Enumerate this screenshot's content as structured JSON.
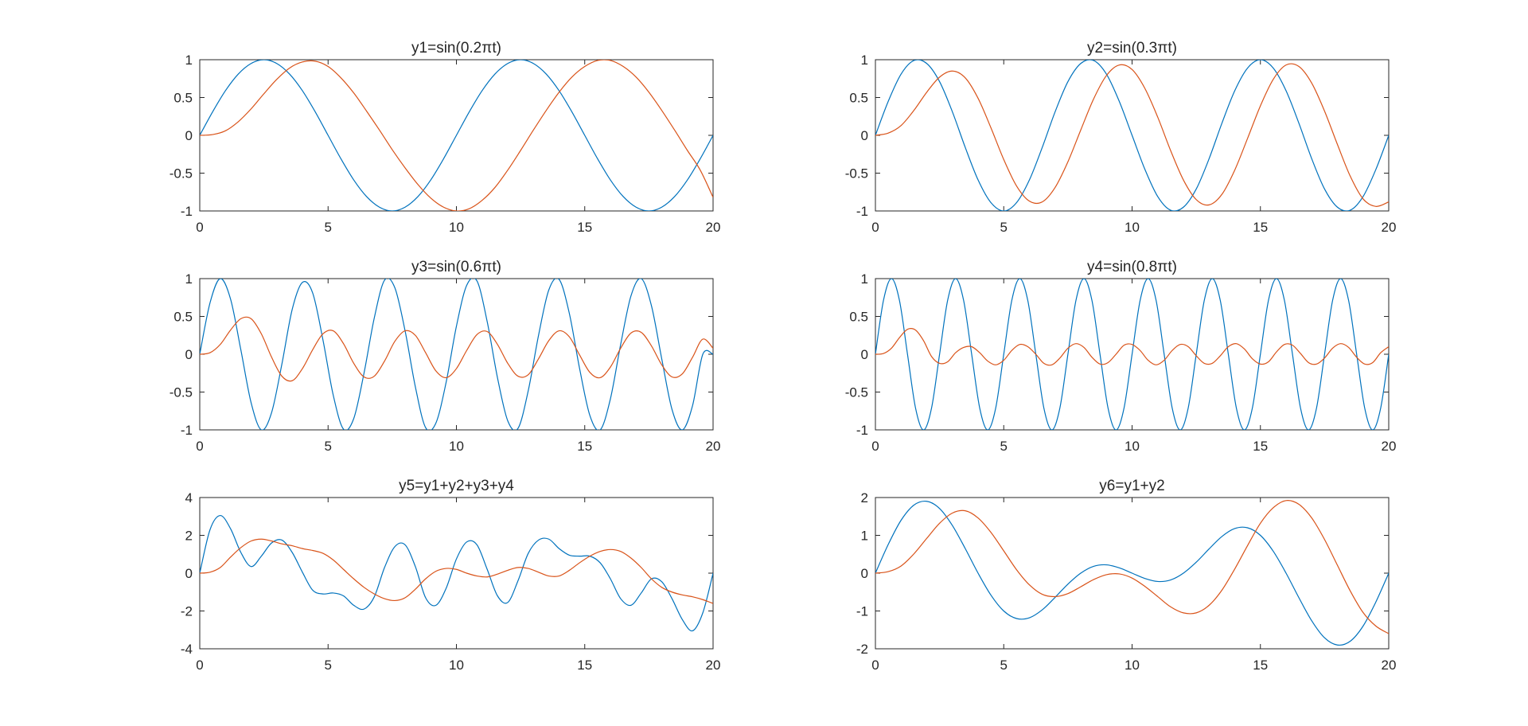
{
  "figure": {
    "colors": {
      "series1": "#0072BD",
      "series2": "#D95319",
      "axis": "#262626",
      "background": "#ffffff"
    }
  },
  "chart_data": [
    {
      "type": "line",
      "title": "y1=sin(0.2πt)",
      "xlim": [
        0,
        20
      ],
      "ylim": [
        -1,
        1
      ],
      "x_ticks": [
        0,
        5,
        10,
        15,
        20
      ],
      "x_tick_labels": [
        "0",
        "5",
        "10",
        "15",
        "20"
      ],
      "y_ticks": [
        -1,
        -0.5,
        0,
        0.5,
        1
      ],
      "y_tick_labels": [
        "-1",
        "-0.5",
        "0",
        "0.5",
        "1"
      ],
      "grid": false,
      "x": [
        0,
        0.5,
        1,
        1.5,
        2,
        2.5,
        3,
        3.5,
        4,
        4.5,
        5,
        5.5,
        6,
        6.5,
        7,
        7.5,
        8,
        8.5,
        9,
        9.5,
        10,
        10.5,
        11,
        11.5,
        12,
        12.5,
        13,
        13.5,
        14,
        14.5,
        15,
        15.5,
        16,
        16.5,
        17,
        17.5,
        18,
        18.5,
        19,
        19.5,
        20
      ],
      "series": [
        {
          "color": "#0072BD",
          "values": [
            0,
            0.31,
            0.59,
            0.81,
            0.95,
            1,
            0.95,
            0.81,
            0.59,
            0.31,
            0,
            -0.31,
            -0.59,
            -0.81,
            -0.95,
            -1,
            -0.95,
            -0.81,
            -0.59,
            -0.31,
            0,
            0.31,
            0.59,
            0.81,
            0.95,
            1,
            0.95,
            0.81,
            0.59,
            0.31,
            0,
            -0.31,
            -0.59,
            -0.81,
            -0.95,
            -1,
            -0.95,
            -0.81,
            -0.59,
            -0.31,
            0
          ]
        },
        {
          "color": "#D95319",
          "values": [
            0,
            0.01,
            0.06,
            0.18,
            0.35,
            0.55,
            0.74,
            0.89,
            0.97,
            0.98,
            0.91,
            0.76,
            0.56,
            0.32,
            0.07,
            -0.19,
            -0.43,
            -0.65,
            -0.83,
            -0.95,
            -1,
            -0.97,
            -0.86,
            -0.69,
            -0.46,
            -0.2,
            0.07,
            0.33,
            0.57,
            0.77,
            0.91,
            0.99,
            0.99,
            0.91,
            0.77,
            0.57,
            0.33,
            0.07,
            -0.2,
            -0.46,
            -0.82
          ]
        }
      ]
    },
    {
      "type": "line",
      "title": "y2=sin(0.3πt)",
      "xlim": [
        0,
        20
      ],
      "ylim": [
        -1,
        1
      ],
      "x_ticks": [
        0,
        5,
        10,
        15,
        20
      ],
      "x_tick_labels": [
        "0",
        "5",
        "10",
        "15",
        "20"
      ],
      "y_ticks": [
        -1,
        -0.5,
        0,
        0.5,
        1
      ],
      "y_tick_labels": [
        "-1",
        "-0.5",
        "0",
        "0.5",
        "1"
      ],
      "grid": false,
      "x": [
        0,
        0.5,
        1,
        1.5,
        2,
        2.5,
        3,
        3.5,
        4,
        4.5,
        5,
        5.5,
        6,
        6.5,
        7,
        7.5,
        8,
        8.5,
        9,
        9.5,
        10,
        10.5,
        11,
        11.5,
        12,
        12.5,
        13,
        13.5,
        14,
        14.5,
        15,
        15.5,
        16,
        16.5,
        17,
        17.5,
        18,
        18.5,
        19,
        19.5,
        20
      ],
      "series": [
        {
          "color": "#0072BD",
          "values": [
            0,
            0.45,
            0.81,
            0.99,
            0.95,
            0.71,
            0.31,
            -0.16,
            -0.59,
            -0.89,
            -1,
            -0.89,
            -0.59,
            -0.16,
            0.31,
            0.71,
            0.95,
            0.99,
            0.81,
            0.45,
            0,
            -0.45,
            -0.81,
            -0.99,
            -0.95,
            -0.71,
            -0.31,
            0.16,
            0.59,
            0.89,
            1,
            0.89,
            0.59,
            0.16,
            -0.31,
            -0.71,
            -0.95,
            -0.99,
            -0.81,
            -0.45,
            0
          ]
        },
        {
          "color": "#D95319",
          "values": [
            0,
            0.03,
            0.13,
            0.33,
            0.57,
            0.77,
            0.85,
            0.76,
            0.49,
            0.1,
            -0.32,
            -0.67,
            -0.87,
            -0.88,
            -0.69,
            -0.35,
            0.07,
            0.48,
            0.79,
            0.93,
            0.87,
            0.62,
            0.24,
            -0.2,
            -0.59,
            -0.85,
            -0.92,
            -0.78,
            -0.46,
            -0.04,
            0.39,
            0.74,
            0.93,
            0.91,
            0.69,
            0.32,
            -0.12,
            -0.54,
            -0.84,
            -0.94,
            -0.88
          ]
        }
      ]
    },
    {
      "type": "line",
      "title": "y3=sin(0.6πt)",
      "xlim": [
        0,
        20
      ],
      "ylim": [
        -1,
        1
      ],
      "x_ticks": [
        0,
        5,
        10,
        15,
        20
      ],
      "x_tick_labels": [
        "0",
        "5",
        "10",
        "15",
        "20"
      ],
      "y_ticks": [
        -1,
        -0.5,
        0,
        0.5,
        1
      ],
      "y_tick_labels": [
        "-1",
        "-0.5",
        "0",
        "0.5",
        "1"
      ],
      "grid": false,
      "x": [
        0,
        0.4,
        0.8,
        1.2,
        1.6,
        2,
        2.4,
        2.8,
        3.2,
        3.6,
        4,
        4.4,
        4.8,
        5.2,
        5.6,
        6,
        6.4,
        6.8,
        7.2,
        7.6,
        8,
        8.4,
        8.8,
        9.2,
        9.6,
        10,
        10.4,
        10.8,
        11.2,
        11.6,
        12,
        12.4,
        12.8,
        13.2,
        13.6,
        14,
        14.4,
        14.8,
        15.2,
        15.6,
        16,
        16.4,
        16.8,
        17.2,
        17.6,
        18,
        18.4,
        18.8,
        19.2,
        19.6,
        20
      ],
      "series": [
        {
          "color": "#0072BD",
          "values": [
            0,
            0.68,
            1,
            0.73,
            0.06,
            -0.64,
            -1,
            -0.77,
            -0.13,
            0.59,
            0.95,
            0.81,
            0.19,
            -0.54,
            -0.99,
            -0.85,
            -0.25,
            0.48,
            0.98,
            0.88,
            0.31,
            -0.43,
            -0.97,
            -0.91,
            -0.37,
            0.37,
            0.91,
            0.97,
            0.43,
            -0.31,
            -0.88,
            -0.98,
            -0.48,
            0.25,
            0.85,
            0.99,
            0.54,
            -0.19,
            -0.81,
            -1,
            -0.59,
            0.13,
            0.77,
            1,
            0.64,
            -0.06,
            -0.73,
            -1,
            -0.68,
            0,
            0
          ]
        },
        {
          "color": "#D95319",
          "values": [
            0,
            0.02,
            0.13,
            0.32,
            0.47,
            0.47,
            0.27,
            -0.04,
            -0.29,
            -0.35,
            -0.19,
            0.06,
            0.27,
            0.31,
            0.14,
            -0.12,
            -0.3,
            -0.29,
            -0.09,
            0.17,
            0.31,
            0.25,
            0.02,
            -0.22,
            -0.31,
            -0.19,
            0.05,
            0.26,
            0.3,
            0.13,
            -0.12,
            -0.29,
            -0.27,
            -0.06,
            0.18,
            0.31,
            0.23,
            -0.01,
            -0.24,
            -0.31,
            -0.17,
            0.08,
            0.28,
            0.29,
            0.11,
            -0.14,
            -0.3,
            -0.26,
            -0.04,
            0.2,
            0.08
          ]
        }
      ]
    },
    {
      "type": "line",
      "title": "y4=sin(0.8πt)",
      "xlim": [
        0,
        20
      ],
      "ylim": [
        -1,
        1
      ],
      "x_ticks": [
        0,
        5,
        10,
        15,
        20
      ],
      "x_tick_labels": [
        "0",
        "5",
        "10",
        "15",
        "20"
      ],
      "y_ticks": [
        -1,
        -0.5,
        0,
        0.5,
        1
      ],
      "y_tick_labels": [
        "-1",
        "-0.5",
        "0",
        "0.5",
        "1"
      ],
      "grid": false,
      "x": [
        0,
        0.3125,
        0.625,
        0.9375,
        1.25,
        1.5625,
        1.875,
        2.1875,
        2.5,
        2.8125,
        3.125,
        3.4375,
        3.75,
        4.0625,
        4.375,
        4.6875,
        5,
        5.3125,
        5.625,
        5.9375,
        6.25,
        6.5625,
        6.875,
        7.1875,
        7.5,
        7.8125,
        8.125,
        8.4375,
        8.75,
        9.0625,
        9.375,
        9.6875,
        10,
        10.3125,
        10.625,
        10.9375,
        11.25,
        11.5625,
        11.875,
        12.1875,
        12.5,
        12.8125,
        13.125,
        13.4375,
        13.75,
        14.0625,
        14.375,
        14.6875,
        15,
        15.3125,
        15.625,
        15.9375,
        16.25,
        16.5625,
        16.875,
        17.1875,
        17.5,
        17.8125,
        18.125,
        18.4375,
        18.75,
        19.0625,
        19.375,
        19.6875,
        20
      ],
      "series": [
        {
          "color": "#0072BD",
          "values": [
            0,
            0.71,
            1,
            0.71,
            0,
            -0.71,
            -1,
            -0.71,
            0,
            0.71,
            1,
            0.71,
            0,
            -0.71,
            -1,
            -0.71,
            0,
            0.71,
            1,
            0.71,
            0,
            -0.71,
            -1,
            -0.71,
            0,
            0.71,
            1,
            0.71,
            0,
            -0.71,
            -1,
            -0.71,
            0,
            0.71,
            1,
            0.71,
            0,
            -0.71,
            -1,
            -0.71,
            0,
            0.71,
            1,
            0.71,
            0,
            -0.71,
            -1,
            -0.71,
            0,
            0.71,
            1,
            0.71,
            0,
            -0.71,
            -1,
            -0.71,
            0,
            0.71,
            1,
            0.71,
            0,
            -0.71,
            -1,
            -0.71,
            0
          ]
        },
        {
          "color": "#D95319",
          "values": [
            0,
            0.01,
            0.08,
            0.22,
            0.33,
            0.32,
            0.18,
            -0.03,
            -0.12,
            -0.1,
            0.02,
            0.09,
            0.1,
            0.02,
            -0.09,
            -0.14,
            -0.08,
            0.05,
            0.13,
            0.1,
            0,
            -0.12,
            -0.14,
            -0.05,
            0.08,
            0.14,
            0.09,
            -0.04,
            -0.13,
            -0.11,
            0,
            0.12,
            0.13,
            0.05,
            -0.08,
            -0.14,
            -0.08,
            0.05,
            0.13,
            0.1,
            -0.02,
            -0.12,
            -0.12,
            -0.02,
            0.1,
            0.14,
            0.07,
            -0.06,
            -0.13,
            -0.1,
            0.03,
            0.13,
            0.12,
            0.01,
            -0.11,
            -0.13,
            -0.05,
            0.08,
            0.14,
            0.09,
            -0.04,
            -0.13,
            -0.11,
            0.02,
            0.1
          ]
        }
      ]
    },
    {
      "type": "line",
      "title": "y5=y1+y2+y3+y4",
      "xlim": [
        0,
        20
      ],
      "ylim": [
        -4,
        4
      ],
      "x_ticks": [
        0,
        5,
        10,
        15,
        20
      ],
      "x_tick_labels": [
        "0",
        "5",
        "10",
        "15",
        "20"
      ],
      "y_ticks": [
        -4,
        -2,
        0,
        2,
        4
      ],
      "y_tick_labels": [
        "-4",
        "-2",
        "0",
        "2",
        "4"
      ],
      "grid": false,
      "x": [
        0,
        0.4,
        0.8,
        1.2,
        1.6,
        2,
        2.4,
        2.8,
        3.2,
        3.6,
        4,
        4.4,
        4.8,
        5.2,
        5.6,
        6,
        6.4,
        6.8,
        7.2,
        7.6,
        8,
        8.4,
        8.8,
        9.2,
        9.6,
        10,
        10.4,
        10.8,
        11.2,
        11.6,
        12,
        12.4,
        12.8,
        13.2,
        13.6,
        14,
        14.4,
        14.8,
        15.2,
        15.6,
        16,
        16.4,
        16.8,
        17.2,
        17.6,
        18,
        18.4,
        18.8,
        19.2,
        19.6,
        20
      ],
      "series": [
        {
          "color": "#0072BD",
          "values": [
            0,
            2.3,
            3.05,
            2.35,
            1.1,
            0.35,
            0.9,
            1.6,
            1.75,
            1.1,
            0.05,
            -0.9,
            -1.1,
            -1.05,
            -1.2,
            -1.7,
            -1.9,
            -1.25,
            0.3,
            1.4,
            1.5,
            0.35,
            -1.3,
            -1.7,
            -0.8,
            0.75,
            1.65,
            1.5,
            0.2,
            -1.2,
            -1.55,
            -0.4,
            1.05,
            1.75,
            1.8,
            1.3,
            0.95,
            0.9,
            0.9,
            0.55,
            -0.3,
            -1.35,
            -1.7,
            -1.05,
            -0.3,
            -0.45,
            -1.35,
            -2.45,
            -3.05,
            -2.1,
            0
          ]
        },
        {
          "color": "#D95319",
          "values": [
            0,
            0.05,
            0.3,
            0.85,
            1.35,
            1.7,
            1.8,
            1.7,
            1.55,
            1.45,
            1.3,
            1.2,
            1.05,
            0.7,
            0.2,
            -0.3,
            -0.75,
            -1.1,
            -1.35,
            -1.45,
            -1.3,
            -0.85,
            -0.3,
            0.1,
            0.25,
            0.2,
            0,
            -0.15,
            -0.2,
            -0.05,
            0.15,
            0.3,
            0.25,
            0.05,
            -0.15,
            -0.15,
            0.15,
            0.55,
            0.9,
            1.15,
            1.25,
            1.15,
            0.8,
            0.3,
            -0.3,
            -0.75,
            -1,
            -1.15,
            -1.25,
            -1.4,
            -1.6
          ]
        }
      ]
    },
    {
      "type": "line",
      "title": "y6=y1+y2",
      "xlim": [
        0,
        20
      ],
      "ylim": [
        -2,
        2
      ],
      "x_ticks": [
        0,
        5,
        10,
        15,
        20
      ],
      "x_tick_labels": [
        "0",
        "5",
        "10",
        "15",
        "20"
      ],
      "y_ticks": [
        -2,
        -1,
        0,
        1,
        2
      ],
      "y_tick_labels": [
        "-2",
        "-1",
        "0",
        "1",
        "2"
      ],
      "grid": false,
      "x": [
        0,
        0.5,
        1,
        1.5,
        2,
        2.5,
        3,
        3.5,
        4,
        4.5,
        5,
        5.5,
        6,
        6.5,
        7,
        7.5,
        8,
        8.5,
        9,
        9.5,
        10,
        10.5,
        11,
        11.5,
        12,
        12.5,
        13,
        13.5,
        14,
        14.5,
        15,
        15.5,
        16,
        16.5,
        17,
        17.5,
        18,
        18.5,
        19,
        19.5,
        20
      ],
      "series": [
        {
          "color": "#0072BD",
          "values": [
            0,
            0.76,
            1.4,
            1.8,
            1.9,
            1.71,
            1.26,
            0.65,
            0,
            -0.58,
            -1,
            -1.2,
            -1.18,
            -0.97,
            -0.64,
            -0.29,
            0,
            0.18,
            0.22,
            0.14,
            0,
            -0.14,
            -0.22,
            -0.18,
            0,
            0.29,
            0.64,
            0.97,
            1.18,
            1.2,
            1,
            0.58,
            0,
            -0.65,
            -1.26,
            -1.71,
            -1.9,
            -1.8,
            -1.4,
            -0.76,
            0
          ]
        },
        {
          "color": "#D95319",
          "values": [
            0,
            0.04,
            0.19,
            0.51,
            0.92,
            1.32,
            1.59,
            1.65,
            1.46,
            1.08,
            0.59,
            0.09,
            -0.31,
            -0.56,
            -0.62,
            -0.54,
            -0.36,
            -0.17,
            -0.04,
            -0.02,
            -0.13,
            -0.35,
            -0.62,
            -0.89,
            -1.05,
            -1.05,
            -0.85,
            -0.45,
            0.11,
            0.73,
            1.32,
            1.73,
            1.92,
            1.82,
            1.46,
            0.89,
            0.21,
            -0.47,
            -1.04,
            -1.4,
            -1.6
          ]
        }
      ]
    }
  ]
}
